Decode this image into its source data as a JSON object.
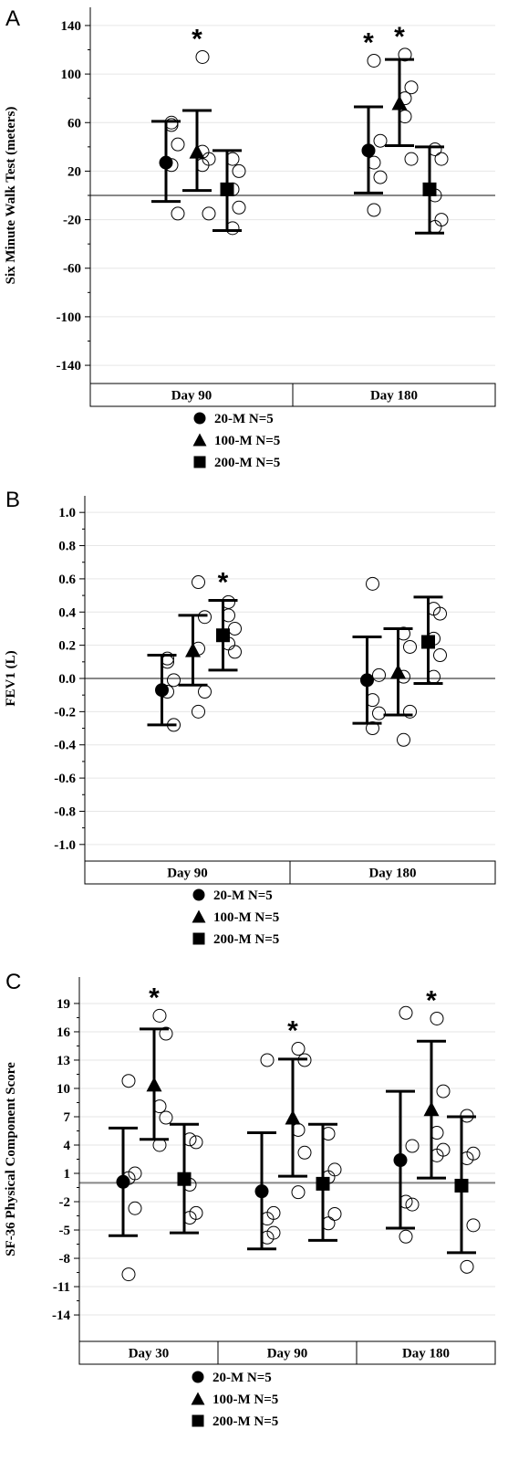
{
  "chart_data": [
    {
      "type": "scatter",
      "panel_label": "A",
      "ylabel": "Six Minute Walk Test (meters)",
      "ylim": [
        -155,
        155
      ],
      "yticks": [
        140,
        100,
        60,
        20,
        -20,
        -60,
        -100,
        -140
      ],
      "categories": [
        "Day 90",
        "Day 180"
      ],
      "grid": true,
      "legend_position": "bottom",
      "series": [
        {
          "name": "20-M N=5",
          "marker": "circle",
          "mean": [
            27,
            37
          ],
          "lower": [
            -5,
            2
          ],
          "upper": [
            61,
            73
          ],
          "points": [
            [
              60,
              42,
              25,
              -15,
              58
            ],
            [
              111,
              45,
              27,
              15,
              -12
            ]
          ]
        },
        {
          "name": "100-M N=5",
          "marker": "triangle",
          "mean": [
            36,
            76
          ],
          "lower": [
            4,
            41
          ],
          "upper": [
            70,
            112
          ],
          "points": [
            [
              114,
              30,
              25,
              -15,
              36
            ],
            [
              116,
              89,
              65,
              30,
              80
            ]
          ]
        },
        {
          "name": "200-M N=5",
          "marker": "square",
          "mean": [
            5,
            5
          ],
          "lower": [
            -29,
            -31
          ],
          "upper": [
            37,
            40
          ],
          "points": [
            [
              30,
              20,
              5,
              -10,
              -27
            ],
            [
              38,
              30,
              0,
              -20,
              -26
            ]
          ]
        }
      ],
      "significance": [
        [
          0,
          1
        ],
        [
          1,
          0
        ],
        [
          1,
          1
        ]
      ]
    },
    {
      "type": "scatter",
      "panel_label": "B",
      "ylabel": "FEV1 (L)",
      "ylim": [
        -1.1,
        1.1
      ],
      "yticks": [
        "1.0",
        "0.8",
        "0.6",
        "0.4",
        "0.2",
        "0.0",
        "-0.2",
        "-0.4",
        "-0.6",
        "-0.8",
        "-1.0"
      ],
      "categories": [
        "Day 90",
        "Day 180"
      ],
      "grid": true,
      "legend_position": "bottom",
      "series": [
        {
          "name": "20-M N=5",
          "marker": "circle",
          "mean": [
            -0.07,
            -0.01
          ],
          "lower": [
            -0.28,
            -0.27
          ],
          "upper": [
            0.14,
            0.25
          ],
          "points": [
            [
              0.12,
              -0.01,
              -0.08,
              -0.28,
              0.1
            ],
            [
              0.57,
              0.02,
              -0.13,
              -0.21,
              -0.3
            ]
          ]
        },
        {
          "name": "100-M N=5",
          "marker": "triangle",
          "mean": [
            0.17,
            0.04
          ],
          "lower": [
            -0.04,
            -0.22
          ],
          "upper": [
            0.38,
            0.3
          ],
          "points": [
            [
              0.58,
              0.37,
              0.18,
              -0.08,
              -0.2
            ],
            [
              0.27,
              0.19,
              0.01,
              -0.2,
              -0.37
            ]
          ]
        },
        {
          "name": "200-M N=5",
          "marker": "square",
          "mean": [
            0.26,
            0.22
          ],
          "lower": [
            0.05,
            -0.03
          ],
          "upper": [
            0.47,
            0.49
          ],
          "points": [
            [
              0.46,
              0.3,
              0.21,
              0.16,
              0.38
            ],
            [
              0.42,
              0.39,
              0.24,
              0.14,
              0.01
            ]
          ]
        }
      ],
      "significance": [
        [
          0,
          2
        ]
      ]
    },
    {
      "type": "scatter",
      "panel_label": "C",
      "ylabel": "SF-36 Physical Component Score",
      "ylim": [
        -16.8,
        21.8
      ],
      "yticks": [
        19,
        16,
        13,
        10,
        7,
        4,
        1,
        -2,
        -5,
        -8,
        -11,
        -14
      ],
      "categories": [
        "Day 30",
        "Day 90",
        "Day 180"
      ],
      "grid": true,
      "legend_position": "bottom",
      "series": [
        {
          "name": "20-M N=5",
          "marker": "circle",
          "mean": [
            0.1,
            -0.9,
            2.4
          ],
          "lower": [
            -5.6,
            -7.0,
            -4.8
          ],
          "upper": [
            5.8,
            5.3,
            9.7
          ],
          "points": [
            [
              10.8,
              1.0,
              0.5,
              -2.7,
              -9.7
            ],
            [
              13.0,
              -3.2,
              -3.8,
              -5.3,
              -5.8
            ],
            [
              18.0,
              3.9,
              -2.0,
              -2.3,
              -5.7
            ]
          ]
        },
        {
          "name": "100-M N=5",
          "marker": "triangle",
          "mean": [
            10.4,
            6.9,
            7.8
          ],
          "lower": [
            4.6,
            0.7,
            0.5
          ],
          "upper": [
            16.3,
            13.1,
            15.0
          ],
          "points": [
            [
              17.7,
              15.8,
              8.1,
              6.9,
              4.0
            ],
            [
              14.2,
              13.0,
              5.6,
              3.2,
              -1.0
            ],
            [
              17.4,
              9.7,
              5.3,
              3.5,
              2.9
            ]
          ]
        },
        {
          "name": "200-M N=5",
          "marker": "square",
          "mean": [
            0.4,
            -0.1,
            -0.3
          ],
          "lower": [
            -5.3,
            -6.1,
            -7.4
          ],
          "upper": [
            6.2,
            6.2,
            7.0
          ],
          "points": [
            [
              4.6,
              4.3,
              -0.2,
              -3.2,
              -3.7
            ],
            [
              5.2,
              1.4,
              0.6,
              -3.3,
              -4.3
            ],
            [
              7.1,
              3.1,
              2.6,
              -4.5,
              -8.9
            ]
          ]
        }
      ],
      "significance": [
        [
          0,
          1
        ],
        [
          1,
          1
        ],
        [
          2,
          1
        ]
      ]
    }
  ],
  "star_symbol": "*"
}
